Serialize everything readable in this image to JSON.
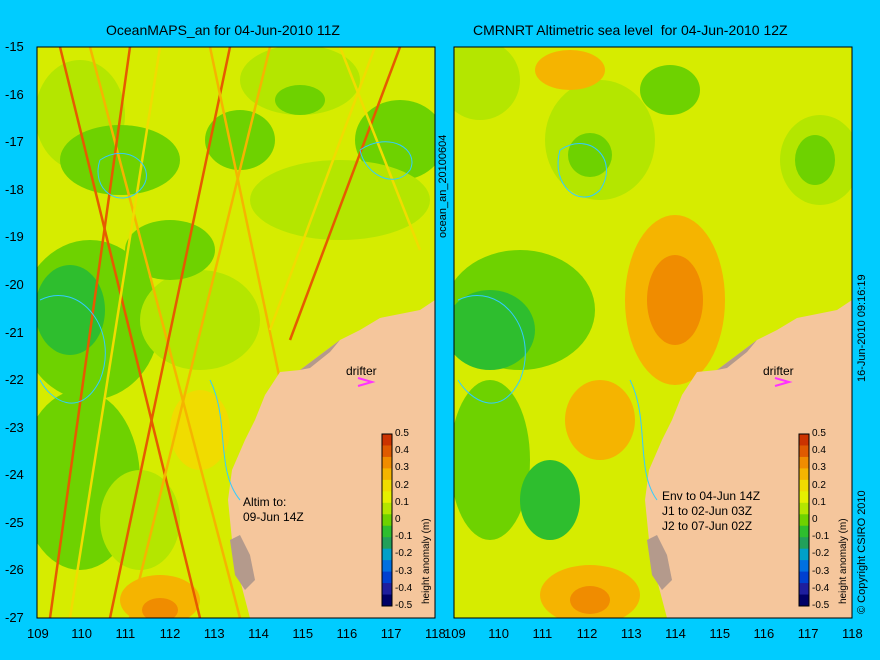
{
  "panels": [
    {
      "title": "OceanMAPS_an for 04-Jun-2010 11Z",
      "drifter_label": "drifter",
      "note": "Altim to:\n09-Jun 14Z",
      "side_label": "ocean_an_20100604"
    },
    {
      "title": "CMRNRT Altimetric sea level  for 04-Jun-2010 12Z",
      "drifter_label": "drifter",
      "note": "Env to 04-Jun 14Z\nJ1 to 02-Jun 03Z\nJ2 to 07-Jun 02Z",
      "side_label": "16-Jun-2010 09:16:19"
    }
  ],
  "copyright": "© Copyright CSIRO 2010",
  "axes": {
    "lat_ticks": [
      "-15",
      "-16",
      "-17",
      "-18",
      "-19",
      "-20",
      "-21",
      "-22",
      "-23",
      "-24",
      "-25",
      "-26",
      "-27"
    ],
    "lon_ticks": [
      "109",
      "110",
      "111",
      "112",
      "113",
      "114",
      "115",
      "116",
      "117",
      "118"
    ]
  },
  "colorbar": {
    "title": "height anomaly (m)",
    "ticks": [
      "0.5",
      "0.4",
      "0.3",
      "0.2",
      "0.1",
      "0",
      "-0.1",
      "-0.2",
      "-0.3",
      "-0.4",
      "-0.5"
    ],
    "colors": [
      "#cc3300",
      "#e05a00",
      "#f08c00",
      "#f5b400",
      "#f0dc00",
      "#e6f000",
      "#b4e600",
      "#6ed200",
      "#2ebe2e",
      "#22a05a",
      "#00a0c8",
      "#0070e0",
      "#0040d0",
      "#1e1e9e",
      "#000066"
    ]
  },
  "colors": {
    "background": "#00ccff",
    "land": "#f5c69c",
    "reef": "#b49a8c",
    "drifter": "#ff33ff",
    "contour": "#33ccff"
  }
}
